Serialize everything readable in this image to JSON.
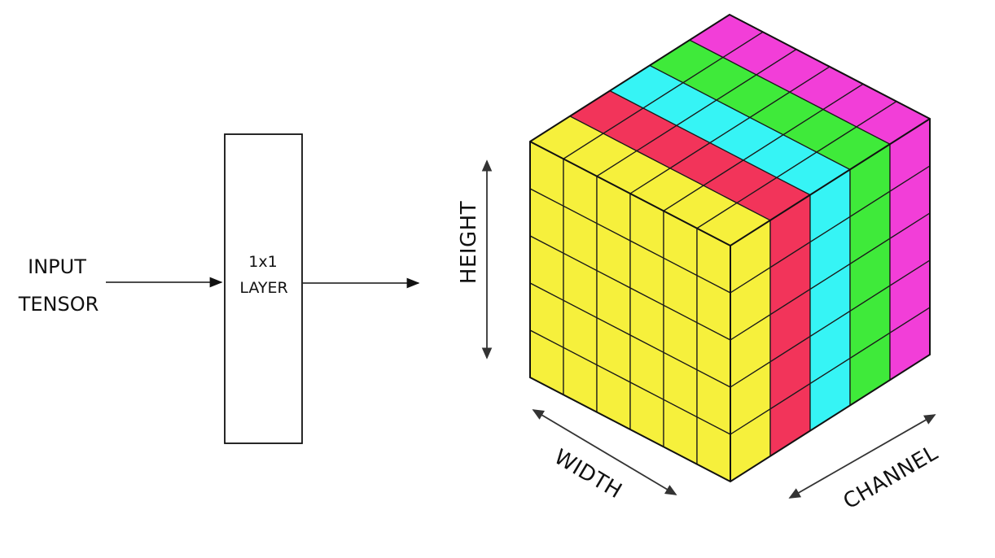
{
  "input_label": {
    "line1": "INPUT",
    "line2": "TENSOR"
  },
  "layer_label": {
    "line1": "1x1",
    "line2": "LAYER"
  },
  "axes": {
    "height": "HEIGHT",
    "width": "WIDTH",
    "channel": "CHANNEL"
  },
  "tensor": {
    "rows": 5,
    "cols": 6,
    "channels": 5,
    "channel_colors": [
      "#f6f03c",
      "#f2345a",
      "#36f4f5",
      "#3fea3a",
      "#f23ed8"
    ],
    "top_side_color": "#f6f03c",
    "grid_color": "#1a1a1a"
  }
}
